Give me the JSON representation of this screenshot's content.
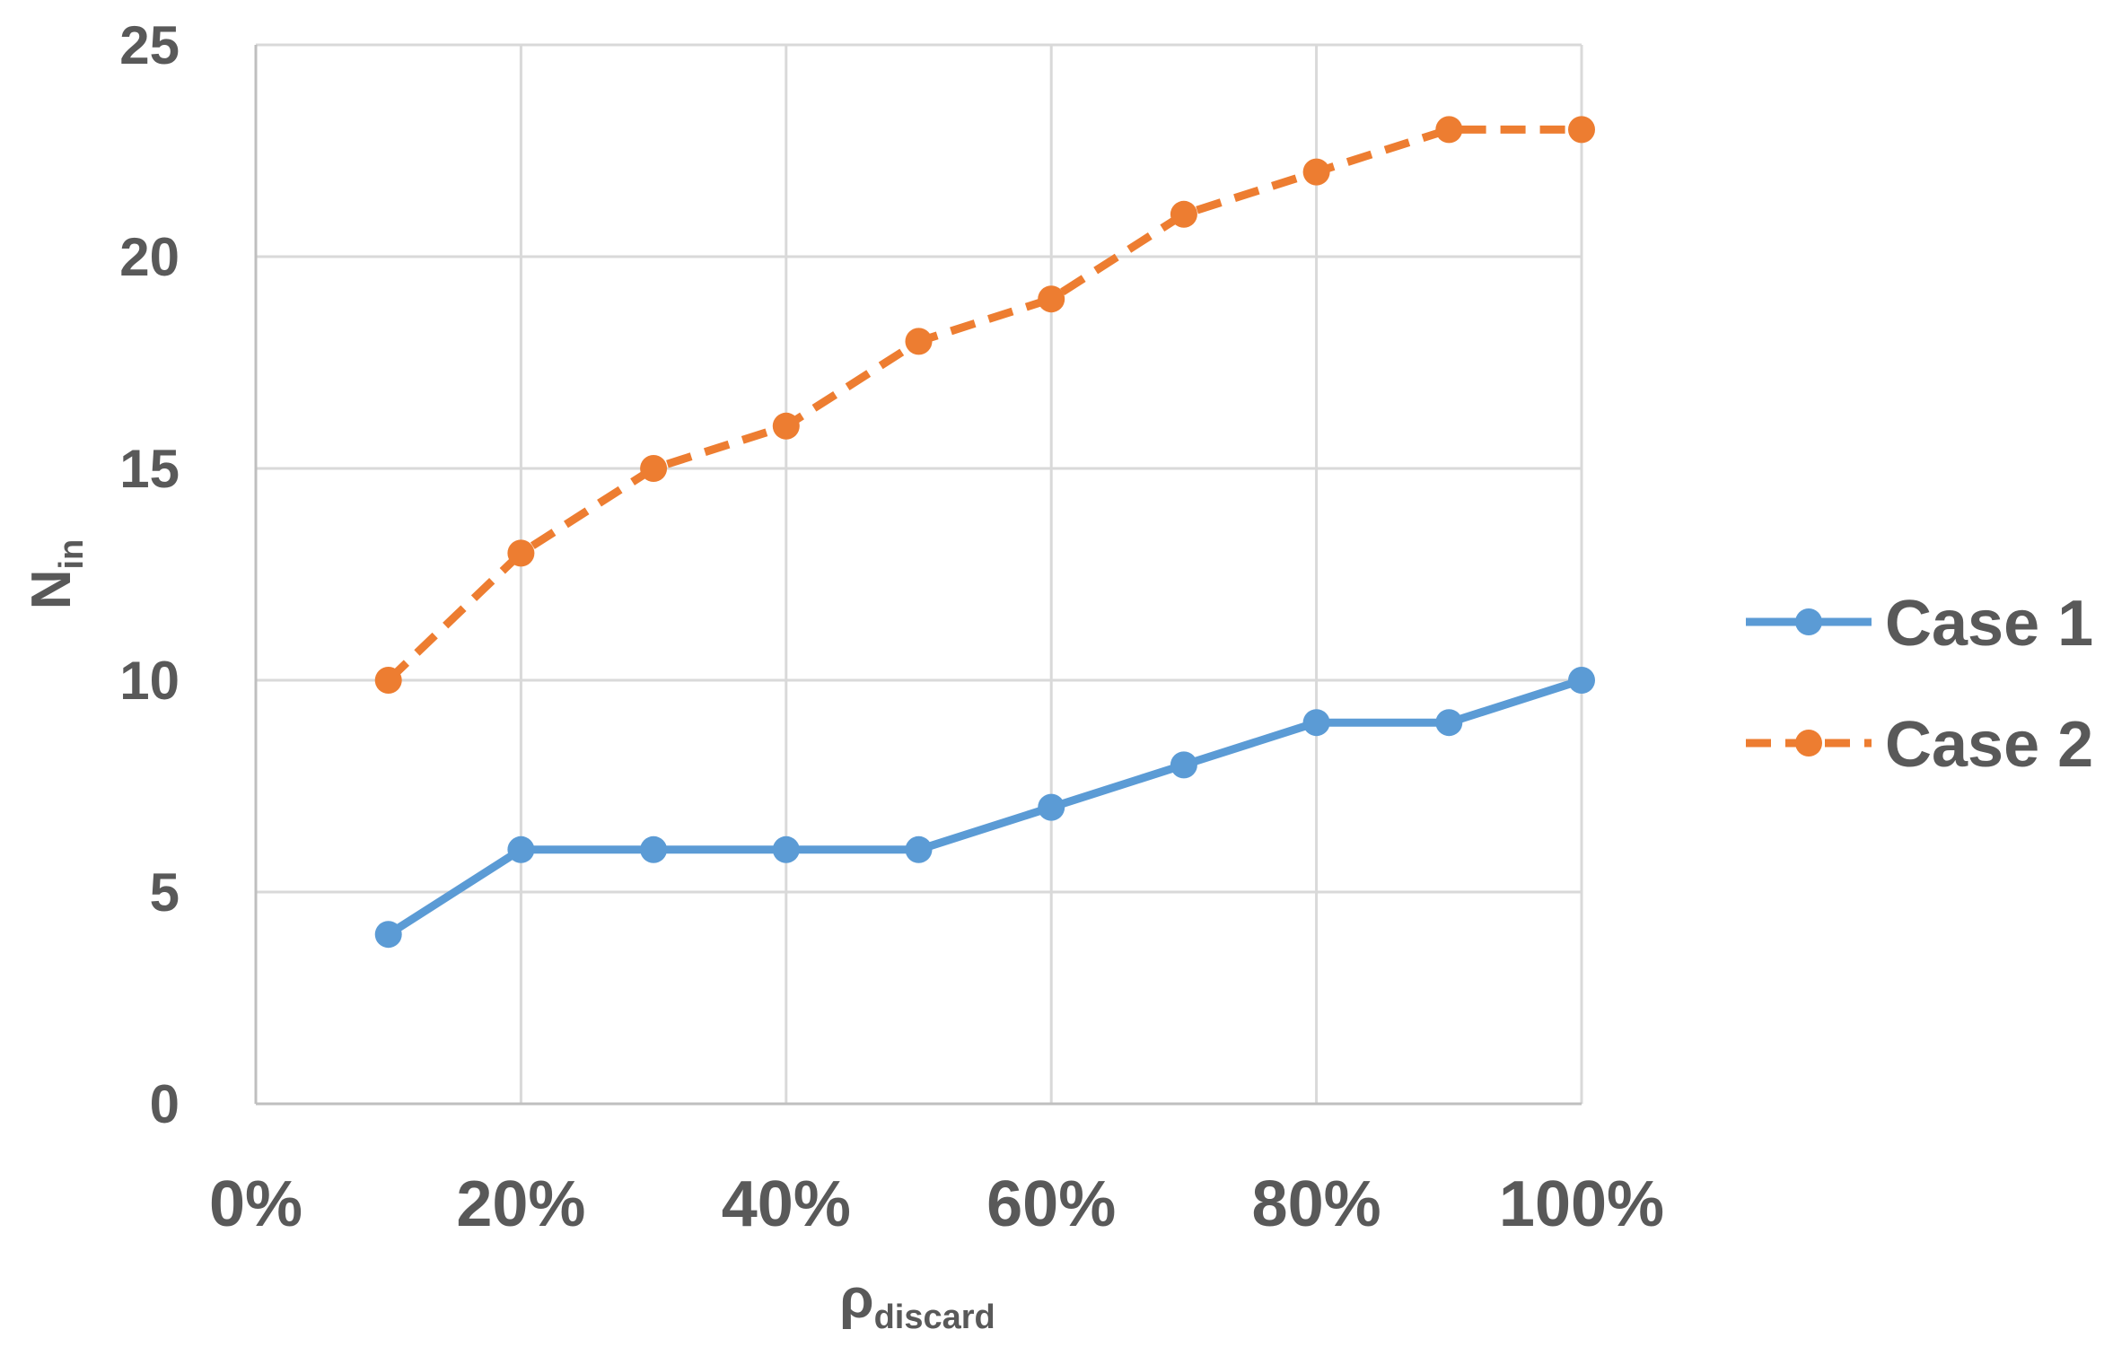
{
  "chart_data": {
    "type": "line",
    "x_tick_labels": [
      "0%",
      "20%",
      "40%",
      "60%",
      "80%",
      "100%"
    ],
    "y_tick_labels": [
      "0",
      "5",
      "10",
      "15",
      "20",
      "25"
    ],
    "xlim": [
      0,
      1
    ],
    "ylim": [
      0,
      25
    ],
    "xlabel": {
      "main": "ρ",
      "sub": "discard"
    },
    "ylabel": {
      "main": "N",
      "sub": "in"
    },
    "grid": true,
    "legend_position": "right",
    "x": [
      0.1,
      0.2,
      0.3,
      0.4,
      0.5,
      0.6,
      0.7,
      0.8,
      0.9,
      1.0
    ],
    "series": [
      {
        "name": "Case 1",
        "color": "#5b9bd5",
        "dashed": false,
        "values": [
          4,
          6,
          6,
          6,
          6,
          7,
          8,
          9,
          9,
          10
        ]
      },
      {
        "name": "Case 2",
        "color": "#ed7d31",
        "dashed": true,
        "values": [
          10,
          13,
          15,
          16,
          18,
          19,
          21,
          22,
          23,
          23
        ]
      }
    ]
  }
}
